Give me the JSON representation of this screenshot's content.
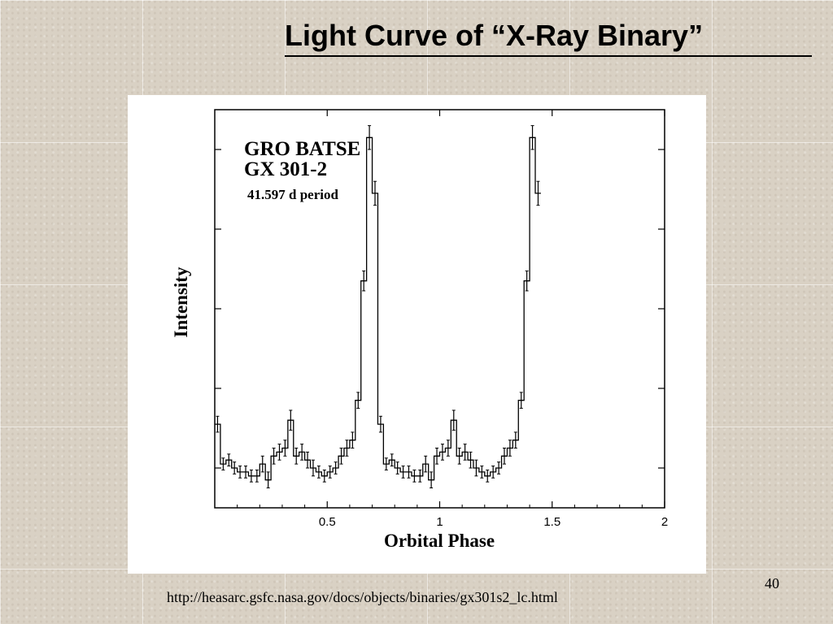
{
  "slide": {
    "title": "Light Curve of “X-Ray Binary”",
    "source_url": "http://heasarc.gsfc.nasa.gov/docs/objects/binaries/gx301s2_lc.html",
    "page_number": "40"
  },
  "chart_data": {
    "type": "line",
    "style": "histogram-step with error bars",
    "annotation": [
      "GRO BATSE",
      "GX 301-2",
      "41.597 d period"
    ],
    "xlabel": "Orbital Phase",
    "ylabel": "Intensity",
    "xlim": [
      0,
      2
    ],
    "ylim": [
      0,
      10
    ],
    "x_ticks": [
      0.5,
      1,
      1.5,
      2
    ],
    "x_tick_labels": [
      "0.5",
      "1",
      "1.5",
      "2"
    ],
    "y_ticks": [
      1,
      3,
      5,
      7,
      9
    ],
    "y_tick_labels": [],
    "grid": false,
    "bin_width": 0.025,
    "series": [
      {
        "values": [
          2.1,
          1.1,
          1.2,
          1.0,
          0.9,
          0.9,
          0.8,
          0.8,
          1.1,
          0.7,
          1.3,
          1.4,
          1.5,
          2.2,
          1.3,
          1.4,
          1.2,
          1.0,
          0.9,
          0.8,
          0.9,
          1.0,
          1.3,
          1.5,
          1.7,
          2.7,
          5.7,
          9.3,
          7.9,
          2.1,
          1.1,
          1.2,
          1.0,
          0.9,
          0.9,
          0.8,
          0.8,
          1.1,
          0.7,
          1.3,
          1.4,
          1.5,
          2.2,
          1.3,
          1.4,
          1.2,
          1.0,
          0.9,
          0.8,
          0.9,
          1.0,
          1.3,
          1.5,
          1.7,
          2.7,
          5.7,
          9.3,
          7.9
        ],
        "errors": [
          0.2,
          0.15,
          0.15,
          0.15,
          0.15,
          0.15,
          0.15,
          0.15,
          0.2,
          0.2,
          0.2,
          0.2,
          0.2,
          0.25,
          0.2,
          0.2,
          0.2,
          0.2,
          0.15,
          0.15,
          0.15,
          0.15,
          0.2,
          0.2,
          0.2,
          0.2,
          0.25,
          0.3,
          0.3,
          0.2,
          0.15,
          0.15,
          0.15,
          0.15,
          0.15,
          0.15,
          0.15,
          0.2,
          0.2,
          0.2,
          0.2,
          0.2,
          0.25,
          0.2,
          0.2,
          0.2,
          0.2,
          0.15,
          0.15,
          0.15,
          0.15,
          0.2,
          0.2,
          0.2,
          0.2,
          0.25,
          0.3,
          0.3
        ]
      }
    ]
  }
}
